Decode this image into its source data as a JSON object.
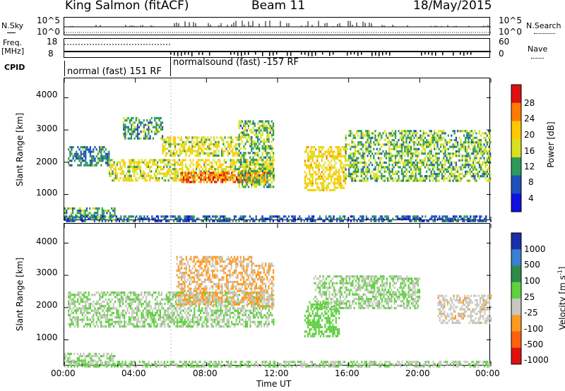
{
  "header": {
    "station": "King Salmon (fitACF)",
    "beam": "Beam 11",
    "date": "18/May/2015"
  },
  "status_panels": {
    "nsky_label": "N.Sky",
    "nsky_ticks": [
      "10^5",
      "10^0"
    ],
    "nsearch_label": "N.Search",
    "nsearch_ticks": [
      "10^5",
      "10^0"
    ],
    "freq_label_1": "Freq.",
    "freq_label_2": "[MHz]",
    "freq_ticks": [
      "18",
      "8"
    ],
    "nave_label": "Nave",
    "nave_ticks": [
      "60",
      "0"
    ],
    "cpid_label": "CPID",
    "cpid_1": "normal (fast) 151 RF",
    "cpid_2": "normalsound (fast) -157 RF"
  },
  "axes": {
    "ylabel": "Slant Range [km]",
    "xlabel": "Time UT",
    "yticks": [
      "4000",
      "3000",
      "2000",
      "1000"
    ],
    "xticks": [
      "00:00",
      "04:00",
      "08:00",
      "12:00",
      "16:00",
      "20:00",
      "00:00"
    ]
  },
  "power_colorbar": {
    "label": "Power [dB]",
    "ticks": [
      "28",
      "24",
      "20",
      "16",
      "12",
      "8",
      "4"
    ],
    "colors": [
      "#e01010",
      "#ff7a00",
      "#ffc800",
      "#d9e020",
      "#2e9a5a",
      "#1f4fb8",
      "#1010e0"
    ]
  },
  "velocity_colorbar": {
    "label_main": "Velocity [m s",
    "label_sup": "-1",
    "label_end": "]",
    "ticks": [
      "1000",
      "500",
      "100",
      "25",
      "-25",
      "-100",
      "-500",
      "-1000"
    ],
    "colors": [
      "#1a2fa8",
      "#3a7fd0",
      "#2e8a4a",
      "#5fd040",
      "#c8c8c0",
      "#ff9a20",
      "#ff6010",
      "#e01010"
    ]
  },
  "chart_data": [
    {
      "type": "heatmap",
      "title": "",
      "xlabel": "Time UT",
      "ylabel": "Slant Range [km]",
      "x_range_hours": [
        0,
        24
      ],
      "ylim": [
        180,
        4600
      ],
      "colorbar": "Power [dB]",
      "colorbar_range": [
        0,
        30
      ],
      "regions": [
        {
          "t0": 0.0,
          "t1": 2.8,
          "r0": 200,
          "r1": 600,
          "value": 10
        },
        {
          "t0": 0.2,
          "t1": 2.5,
          "r0": 1900,
          "r1": 2500,
          "value": 8
        },
        {
          "t0": 2.5,
          "t1": 11.8,
          "r0": 1400,
          "r1": 2100,
          "value": 16
        },
        {
          "t0": 6.5,
          "t1": 11.5,
          "r0": 1350,
          "r1": 1700,
          "value": 26
        },
        {
          "t0": 3.3,
          "t1": 5.5,
          "r0": 2700,
          "r1": 3400,
          "value": 10
        },
        {
          "t0": 5.5,
          "t1": 9.8,
          "r0": 2200,
          "r1": 2800,
          "value": 16
        },
        {
          "t0": 9.8,
          "t1": 11.8,
          "r0": 1200,
          "r1": 3300,
          "value": 12
        },
        {
          "t0": 13.5,
          "t1": 15.8,
          "r0": 1100,
          "r1": 2500,
          "value": 18
        },
        {
          "t0": 15.8,
          "t1": 24.0,
          "r0": 1400,
          "r1": 3000,
          "value": 12
        },
        {
          "t0": 0.0,
          "t1": 24.0,
          "r0": 180,
          "r1": 350,
          "value": 6
        }
      ]
    },
    {
      "type": "heatmap",
      "title": "",
      "xlabel": "Time UT",
      "ylabel": "Slant Range [km]",
      "x_range_hours": [
        0,
        24
      ],
      "ylim": [
        180,
        4600
      ],
      "colorbar": "Velocity [m s-1]",
      "colorbar_range": [
        -1000,
        1000
      ],
      "regions": [
        {
          "t0": 0.0,
          "t1": 2.8,
          "r0": 200,
          "r1": 600,
          "value": 0
        },
        {
          "t0": 0.2,
          "t1": 11.8,
          "r0": 1400,
          "r1": 2500,
          "value": 0
        },
        {
          "t0": 6.3,
          "t1": 10.5,
          "r0": 2100,
          "r1": 3600,
          "value": -300
        },
        {
          "t0": 10.5,
          "t1": 11.8,
          "r0": 2000,
          "r1": 3400,
          "value": -300
        },
        {
          "t0": 13.5,
          "t1": 15.5,
          "r0": 1100,
          "r1": 2200,
          "value": 150
        },
        {
          "t0": 14.0,
          "t1": 20.0,
          "r0": 2000,
          "r1": 3000,
          "value": 0
        },
        {
          "t0": 21.0,
          "t1": 24.0,
          "r0": 1500,
          "r1": 2400,
          "value": -200
        },
        {
          "t0": 0.0,
          "t1": 24.0,
          "r0": 180,
          "r1": 350,
          "value": 0
        }
      ]
    }
  ]
}
